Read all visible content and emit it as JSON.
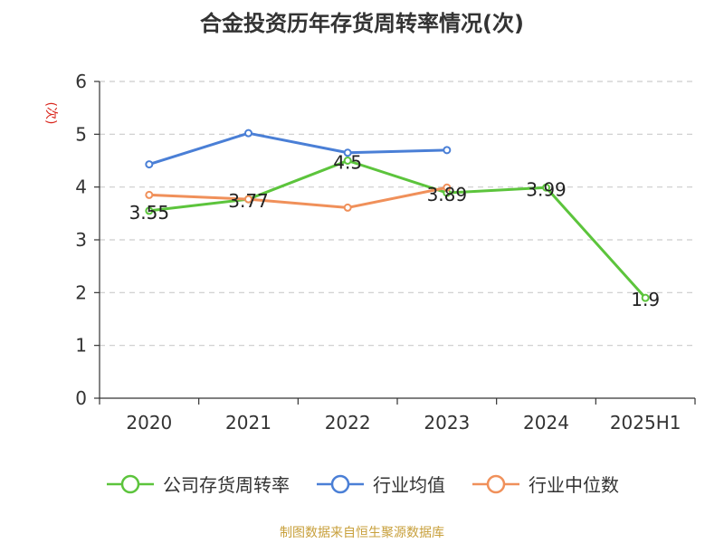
{
  "chart_data": {
    "type": "line",
    "title": "合金投资历年存货周转率情况(次)",
    "ylabel": "(次)",
    "ylim": [
      0,
      6
    ],
    "yticks": [
      0,
      1,
      2,
      3,
      4,
      5,
      6
    ],
    "categories": [
      "2020",
      "2021",
      "2022",
      "2023",
      "2024",
      "2025H1"
    ],
    "grid": true,
    "legend_position": "bottom",
    "series": [
      {
        "name": "公司存货周转率",
        "color": "#5cc43c",
        "values": [
          3.55,
          3.77,
          4.5,
          3.89,
          3.99,
          1.9
        ],
        "labels": [
          "3.55",
          "3.77",
          "4.5",
          "3.89",
          "3.99",
          "1.9"
        ]
      },
      {
        "name": "行业均值",
        "color": "#4a7fd6",
        "values": [
          4.43,
          5.02,
          4.65,
          4.7,
          null,
          null
        ]
      },
      {
        "name": "行业中位数",
        "color": "#f0905a",
        "values": [
          3.85,
          3.77,
          3.61,
          3.99,
          null,
          null
        ]
      }
    ]
  },
  "source": "制图数据来自恒生聚源数据库"
}
